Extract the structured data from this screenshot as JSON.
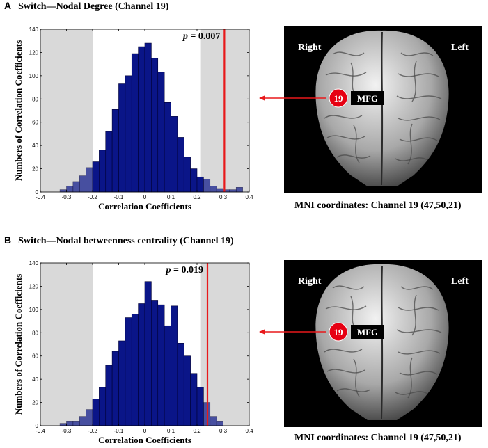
{
  "panels": [
    {
      "letter": "A",
      "title": "Switch—Nodal Degree (Channel 19)",
      "brain": {
        "right_label": "Right",
        "left_label": "Left",
        "channel": "19",
        "region": "MFG",
        "caption": "MNI coordinates: Channel 19 (47,50,21)"
      }
    },
    {
      "letter": "B",
      "title": "Switch—Nodal betweenness centrality (Channel 19)",
      "brain": {
        "right_label": "Right",
        "left_label": "Left",
        "channel": "19",
        "region": "MFG",
        "caption": "MNI coordinates: Channel 19 (47,50,21)"
      }
    }
  ],
  "colors": {
    "bar_fill": "#0a1588",
    "shade": "#d9d9d9",
    "observed_line": "#e8191b",
    "channel_marker": "#e60012",
    "brain_bg": "#000000"
  },
  "chart_data": [
    {
      "type": "bar",
      "title": "",
      "xlabel": "Correlation Coefficients",
      "ylabel": "Numbers of Correlation Coefficients",
      "xlim": [
        -0.4,
        0.4
      ],
      "ylim": [
        0,
        140
      ],
      "xticks": [
        -0.4,
        -0.3,
        -0.2,
        -0.1,
        0,
        0.1,
        0.2,
        0.3,
        0.4
      ],
      "xtick_labels": [
        "-0.4",
        "-0.3",
        "-0.2",
        "-0.1",
        "0",
        "0.1",
        "0.2",
        "0.3",
        "0.4"
      ],
      "yticks": [
        0,
        20,
        40,
        60,
        80,
        100,
        120,
        140
      ],
      "ytick_labels": [
        "0",
        "20",
        "40",
        "60",
        "80",
        "100",
        "120",
        "140"
      ],
      "shaded_regions": [
        [
          -0.4,
          -0.2
        ],
        [
          0.215,
          0.4
        ]
      ],
      "bin_width": 0.025,
      "bin_starts": [
        -0.325,
        -0.3,
        -0.275,
        -0.25,
        -0.225,
        -0.2,
        -0.175,
        -0.15,
        -0.125,
        -0.1,
        -0.075,
        -0.05,
        -0.025,
        0.0,
        0.025,
        0.05,
        0.075,
        0.1,
        0.125,
        0.15,
        0.175,
        0.2,
        0.225,
        0.25,
        0.275,
        0.3,
        0.325,
        0.35
      ],
      "values": [
        2,
        5,
        9,
        14,
        21,
        26,
        36,
        52,
        71,
        93,
        100,
        119,
        125,
        128,
        115,
        103,
        77,
        65,
        47,
        30,
        20,
        13,
        11,
        5,
        3,
        2,
        2,
        4
      ],
      "observed_value": 0.305,
      "annotation": {
        "symbol": "p",
        "text": " = 0.007"
      }
    },
    {
      "type": "bar",
      "title": "",
      "xlabel": "Correlation Coefficients",
      "ylabel": "Numbers of Correlation Coefficients",
      "xlim": [
        -0.4,
        0.4
      ],
      "ylim": [
        0,
        140
      ],
      "xticks": [
        -0.4,
        -0.3,
        -0.2,
        -0.1,
        0,
        0.1,
        0.2,
        0.3,
        0.4
      ],
      "xtick_labels": [
        "-0.4",
        "-0.3",
        "-0.2",
        "-0.1",
        "0",
        "0.1",
        "0.2",
        "0.3",
        "0.4"
      ],
      "yticks": [
        0,
        20,
        40,
        60,
        80,
        100,
        120,
        140
      ],
      "ytick_labels": [
        "0",
        "20",
        "40",
        "60",
        "80",
        "100",
        "120",
        "140"
      ],
      "shaded_regions": [
        [
          -0.4,
          -0.2
        ],
        [
          0.215,
          0.4
        ]
      ],
      "bin_width": 0.025,
      "bin_starts": [
        -0.325,
        -0.3,
        -0.275,
        -0.25,
        -0.225,
        -0.2,
        -0.175,
        -0.15,
        -0.125,
        -0.1,
        -0.075,
        -0.05,
        -0.025,
        0.0,
        0.025,
        0.05,
        0.075,
        0.1,
        0.125,
        0.15,
        0.175,
        0.2,
        0.225,
        0.25,
        0.275
      ],
      "values": [
        2,
        4,
        4,
        8,
        14,
        23,
        33,
        52,
        64,
        73,
        93,
        96,
        105,
        124,
        108,
        104,
        86,
        103,
        71,
        60,
        45,
        33,
        20,
        8,
        4
      ],
      "observed_value": 0.24,
      "annotation": {
        "symbol": "p",
        "text": " = 0.019"
      }
    }
  ]
}
